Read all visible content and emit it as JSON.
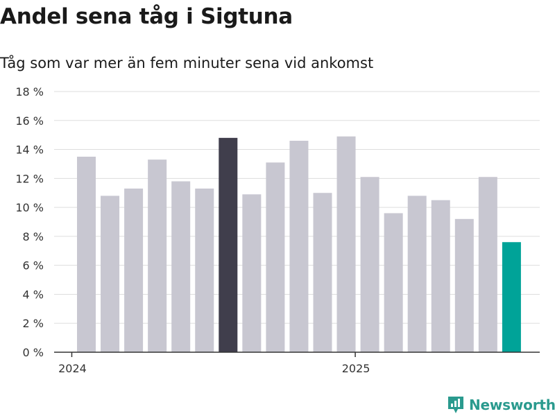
{
  "header": {
    "title": "Andel sena tåg i Sigtuna",
    "subtitle": "Tåg som var mer än fem minuter sena vid ankomst"
  },
  "brand": {
    "name": "Newsworthy",
    "icon": "newsworthy-logo-icon",
    "color": "#2a9a8e"
  },
  "colors": {
    "default_bar": "#c8c7d1",
    "highlight_bar": "#403e4c",
    "latest_bar": "#00a398",
    "grid": "#dddddd",
    "axis": "#333333"
  },
  "chart_data": {
    "type": "bar",
    "title": "Andel sena tåg i Sigtuna",
    "subtitle": "Tåg som var mer än fem minuter sena vid ankomst",
    "xlabel": "",
    "ylabel": "",
    "unit": "%",
    "ylim": [
      0,
      18
    ],
    "yticks": [
      0,
      2,
      4,
      6,
      8,
      10,
      12,
      14,
      16,
      18
    ],
    "ytick_labels": [
      "0 %",
      "2 %",
      "4 %",
      "6 %",
      "8 %",
      "10 %",
      "12 %",
      "14 %",
      "16 %",
      "18 %"
    ],
    "xtick_labels": [
      {
        "label": "2024",
        "at": "2024-01"
      },
      {
        "label": "2025",
        "at": "2025-01"
      }
    ],
    "grid": true,
    "categories": [
      "2024-02",
      "2024-03",
      "2024-04",
      "2024-05",
      "2024-06",
      "2024-07",
      "2024-08",
      "2024-09",
      "2024-10",
      "2024-11",
      "2024-12",
      "2025-01",
      "2025-02",
      "2025-03",
      "2025-04",
      "2025-05",
      "2025-06",
      "2025-07",
      "2025-08"
    ],
    "values": [
      13.5,
      10.8,
      11.3,
      13.3,
      11.8,
      11.3,
      14.8,
      10.9,
      13.1,
      14.6,
      11.0,
      14.9,
      12.1,
      9.6,
      10.8,
      10.5,
      9.2,
      12.1,
      7.6
    ],
    "highlight": [
      "2024-08"
    ],
    "latest": [
      "2025-08"
    ]
  }
}
